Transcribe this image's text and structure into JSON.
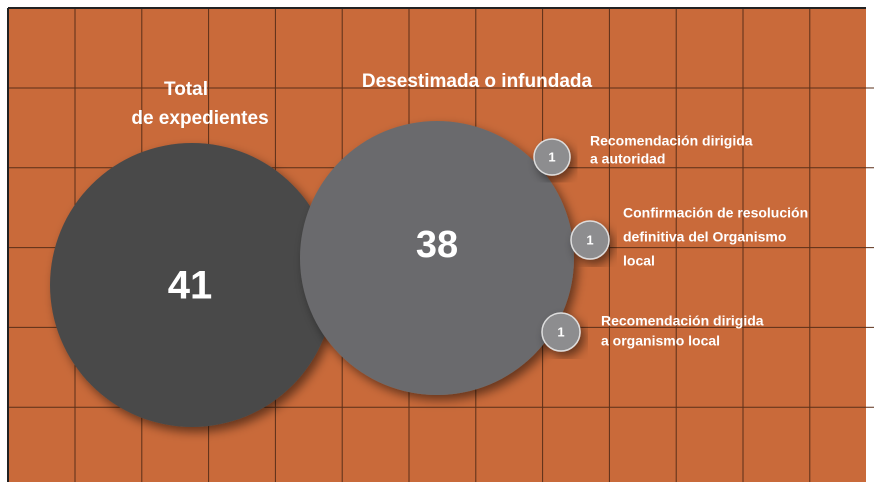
{
  "main": {
    "label": [
      "Total",
      "de expedientes"
    ],
    "value": "41"
  },
  "sub": {
    "label": [
      "Desestimada o infundada"
    ],
    "value": "38"
  },
  "items": [
    {
      "label": [
        "Recomendación dirigida",
        "a autoridad"
      ],
      "value": "1"
    },
    {
      "label": [
        "Confirmación de resolución",
        "definitiva del Organismo",
        "local"
      ],
      "value": "1"
    },
    {
      "label": [
        "Recomendación dirigida",
        "a organismo local"
      ],
      "value": "1"
    }
  ]
}
